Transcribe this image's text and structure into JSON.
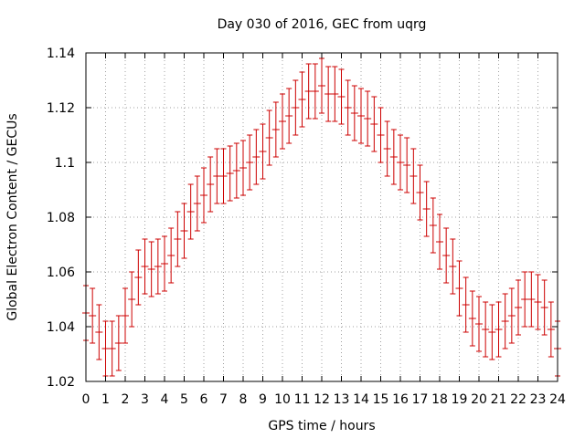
{
  "chart_data": {
    "type": "scatter",
    "title": "Day 030 of 2016, GEC from uqrg",
    "xlabel": "GPS time / hours",
    "ylabel": "Global Electron Content / GECUs",
    "xlim": [
      0,
      24
    ],
    "ylim": [
      1.02,
      1.14
    ],
    "x_ticks": [
      0,
      1,
      2,
      3,
      4,
      5,
      6,
      7,
      8,
      9,
      10,
      11,
      12,
      13,
      14,
      15,
      16,
      17,
      18,
      19,
      20,
      21,
      22,
      23,
      24
    ],
    "y_ticks": [
      "1.02",
      "1.04",
      "1.06",
      "1.08",
      "1.1",
      "1.12",
      "1.14"
    ],
    "grid": true,
    "series_color": "#cc0000",
    "error_bar_halfwidth": 0.01,
    "x": [
      0,
      0.333,
      0.667,
      1,
      1.333,
      1.667,
      2,
      2.333,
      2.667,
      3,
      3.333,
      3.667,
      4,
      4.333,
      4.667,
      5,
      5.333,
      5.667,
      6,
      6.333,
      6.667,
      7,
      7.333,
      7.667,
      8,
      8.333,
      8.667,
      9,
      9.333,
      9.667,
      10,
      10.333,
      10.667,
      11,
      11.333,
      11.667,
      12,
      12.333,
      12.667,
      13,
      13.333,
      13.667,
      14,
      14.333,
      14.667,
      15,
      15.333,
      15.667,
      16,
      16.333,
      16.667,
      17,
      17.333,
      17.667,
      18,
      18.333,
      18.667,
      19,
      19.333,
      19.667,
      20,
      20.333,
      20.667,
      21,
      21.333,
      21.667,
      22,
      22.333,
      22.667,
      23,
      23.333,
      23.667,
      24
    ],
    "values": [
      1.045,
      1.044,
      1.038,
      1.032,
      1.032,
      1.034,
      1.044,
      1.05,
      1.058,
      1.062,
      1.061,
      1.062,
      1.063,
      1.066,
      1.072,
      1.075,
      1.082,
      1.085,
      1.088,
      1.092,
      1.095,
      1.095,
      1.096,
      1.097,
      1.098,
      1.1,
      1.102,
      1.104,
      1.109,
      1.112,
      1.115,
      1.117,
      1.12,
      1.123,
      1.126,
      1.126,
      1.128,
      1.125,
      1.125,
      1.124,
      1.12,
      1.118,
      1.117,
      1.116,
      1.114,
      1.11,
      1.105,
      1.102,
      1.1,
      1.099,
      1.095,
      1.089,
      1.083,
      1.077,
      1.071,
      1.066,
      1.062,
      1.054,
      1.048,
      1.043,
      1.041,
      1.039,
      1.038,
      1.039,
      1.042,
      1.044,
      1.047,
      1.05,
      1.05,
      1.049,
      1.047,
      1.039,
      1.032
    ]
  }
}
